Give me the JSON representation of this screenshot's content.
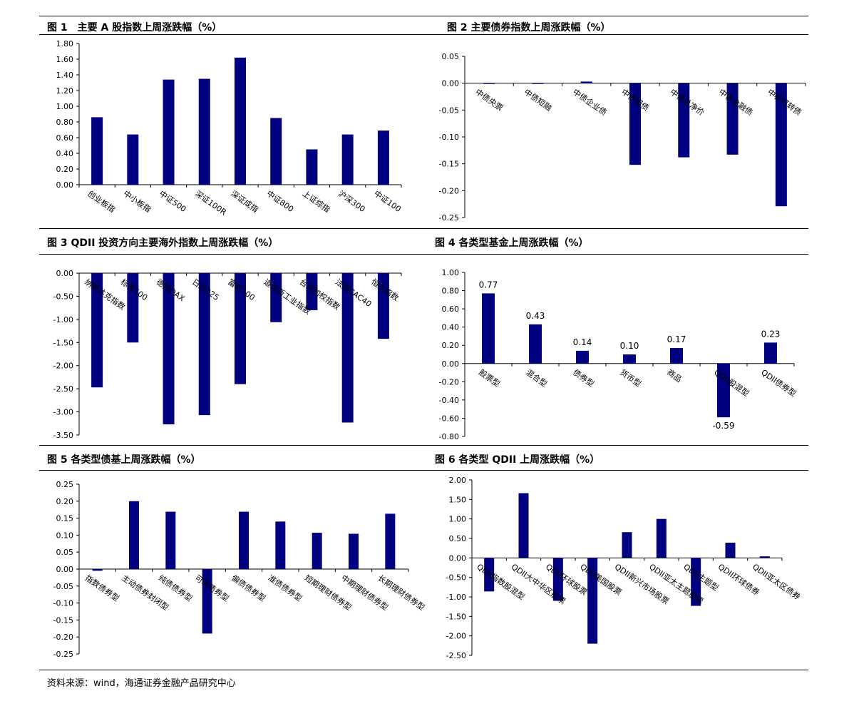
{
  "page": {
    "source": "资料来源：wind，海通证券金融产品研究中心",
    "bar_color": "#000080"
  },
  "chart_data": [
    {
      "type": "bar",
      "title": "图 1　主要 A 股指数上周涨跌幅（%）",
      "categories": [
        "创业板指",
        "中小板指",
        "中证500",
        "深证100R",
        "深证成指",
        "中证800",
        "上证综指",
        "沪深300",
        "中证100"
      ],
      "values": [
        0.86,
        0.64,
        1.34,
        1.35,
        1.62,
        0.85,
        0.45,
        0.64,
        0.69
      ],
      "ylim": [
        0,
        1.8
      ],
      "yticks": [
        "1.80",
        "1.60",
        "1.40",
        "1.20",
        "1.00",
        "0.80",
        "0.60",
        "0.40",
        "0.20",
        "0.00"
      ],
      "data_labels": []
    },
    {
      "type": "bar",
      "title": "图 2 主要债券指数上周涨跌幅（%）",
      "categories": [
        "中债央票",
        "中债短融",
        "中债企业债",
        "中债国债",
        "中债总净价",
        "中债金融债",
        "中标可转债"
      ],
      "values": [
        -0.001,
        -0.001,
        0.003,
        -0.152,
        -0.138,
        -0.133,
        -0.229
      ],
      "ylim": [
        -0.25,
        0.05
      ],
      "yticks": [
        "0.05",
        "0.00",
        "-0.05",
        "-0.10",
        "-0.15",
        "-0.20",
        "-0.25"
      ],
      "data_labels": []
    },
    {
      "type": "bar",
      "title": "图 3 QDII 投资方向主要海外指数上周涨跌幅（%）",
      "categories": [
        "纳斯达克指数",
        "标普500",
        "德国DAX",
        "日经225",
        "富时100",
        "道琼斯工业指数",
        "台湾加权指数",
        "法国CAC40",
        "恒生指数"
      ],
      "values": [
        -2.47,
        -1.5,
        -3.27,
        -3.07,
        -2.4,
        -1.06,
        -0.8,
        -3.23,
        -1.42
      ],
      "ylim": [
        -3.5,
        0
      ],
      "yticks": [
        "0.00",
        "-0.50",
        "-1.00",
        "-1.50",
        "-2.00",
        "-2.50",
        "-3.00",
        "-3.50"
      ],
      "data_labels": []
    },
    {
      "type": "bar",
      "title": "图 4 各类型基金上周涨跌幅（%）",
      "categories": [
        "股票型",
        "混合型",
        "债券型",
        "货币型",
        "商品",
        "QDII股混型",
        "QDII债券型"
      ],
      "values": [
        0.77,
        0.43,
        0.14,
        0.1,
        0.17,
        -0.59,
        0.23
      ],
      "ylim": [
        -0.8,
        1.0
      ],
      "yticks": [
        "1.00",
        "0.80",
        "0.60",
        "0.40",
        "0.20",
        "0.00",
        "-0.20",
        "-0.40",
        "-0.60",
        "-0.80"
      ],
      "data_labels": [
        "0.77",
        "0.43",
        "0.14",
        "0.10",
        "0.17",
        "-0.59",
        "0.23"
      ]
    },
    {
      "type": "bar",
      "title": "图 5 各类型债基上周涨跌幅（%）",
      "categories": [
        "指数债券型",
        "主动债券封闭型",
        "纯债债券型",
        "可转债券型",
        "偏债债券型",
        "准债债券型",
        "短期理财债券型",
        "中期理财债券型",
        "长期理财债券型"
      ],
      "values": [
        -0.005,
        0.2,
        0.169,
        -0.19,
        0.169,
        0.14,
        0.107,
        0.104,
        0.163
      ],
      "ylim": [
        -0.25,
        0.25
      ],
      "yticks": [
        "0.25",
        "0.20",
        "0.15",
        "0.10",
        "0.05",
        "0.00",
        "-0.05",
        "-0.10",
        "-0.15",
        "-0.20",
        "-0.25"
      ],
      "data_labels": []
    },
    {
      "type": "bar",
      "title": "图 6 各类型 QDII 上周涨跌幅（%）",
      "categories": [
        "QDII指数股混型",
        "QDII大中华区股票",
        "QDII环球股票",
        "QDII美国股票",
        "QDII新兴市场股票",
        "QDII亚太主题股票",
        "QDII主题型",
        "QDII环球债券",
        "QDII亚太区债券"
      ],
      "values": [
        -0.86,
        1.66,
        -1.1,
        -2.2,
        0.66,
        1.0,
        -1.23,
        0.39,
        0.04
      ],
      "ylim": [
        -2.5,
        2.0
      ],
      "yticks": [
        "2.00",
        "1.50",
        "1.00",
        "0.50",
        "0.00",
        "-0.50",
        "-1.00",
        "-1.50",
        "-2.00",
        "-2.50"
      ],
      "data_labels": []
    }
  ]
}
